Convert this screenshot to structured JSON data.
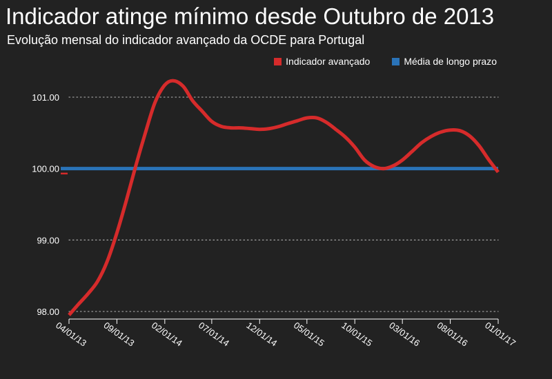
{
  "header": {
    "title": "Indicador atinge mínimo desde Outubro de 2013",
    "subtitle": "Evolução mensal do indicador avançado da OCDE para Portugal"
  },
  "colors": {
    "background": "#222222",
    "indicator": "#d62b2b",
    "average": "#2a73b8",
    "grid": "#9a9a9a",
    "text": "#ffffff"
  },
  "chart_data": {
    "type": "line",
    "title": "Indicador atinge mínimo desde Outubro de 2013",
    "subtitle": "Evolução mensal do indicador avançado da OCDE para Portugal",
    "xlabel": "",
    "ylabel": "",
    "ylim": [
      98.0,
      101.3
    ],
    "yticks": [
      98.0,
      99.0,
      100.0,
      101.0
    ],
    "ytick_labels": [
      "98.00",
      "99.00",
      "100.00",
      "101.00"
    ],
    "xlim": [
      "2013-04-01",
      "2017-01-01"
    ],
    "xticks": [
      "2013-04-01",
      "2013-09-01",
      "2014-02-01",
      "2014-07-01",
      "2014-12-01",
      "2015-05-01",
      "2015-10-01",
      "2016-03-01",
      "2016-08-01",
      "2017-01-01"
    ],
    "xtick_labels": [
      "04/01/13",
      "09/01/13",
      "02/01/14",
      "07/01/14",
      "12/01/14",
      "05/01/15",
      "10/01/15",
      "03/01/16",
      "08/01/16",
      "01/01/17"
    ],
    "grid": "horizontal-dotted",
    "legend_position": "top-right",
    "series": [
      {
        "name": "Indicador avançado",
        "color": "#d62b2b",
        "x": [
          "2013-04-01",
          "2013-05-01",
          "2013-06-01",
          "2013-07-01",
          "2013-08-01",
          "2013-09-01",
          "2013-10-01",
          "2013-11-01",
          "2013-12-01",
          "2014-01-01",
          "2014-02-01",
          "2014-03-01",
          "2014-04-01",
          "2014-05-01",
          "2014-06-01",
          "2014-07-01",
          "2014-08-01",
          "2014-09-01",
          "2014-10-01",
          "2014-11-01",
          "2014-12-01",
          "2015-01-01",
          "2015-02-01",
          "2015-03-01",
          "2015-04-01",
          "2015-05-01",
          "2015-06-01",
          "2015-07-01",
          "2015-08-01",
          "2015-09-01",
          "2015-10-01",
          "2015-11-01",
          "2015-12-01",
          "2016-01-01",
          "2016-02-01",
          "2016-03-01",
          "2016-04-01",
          "2016-05-01",
          "2016-06-01",
          "2016-07-01",
          "2016-08-01",
          "2016-09-01",
          "2016-10-01",
          "2016-11-01",
          "2016-12-01",
          "2017-01-01"
        ],
        "values": [
          97.95,
          98.1,
          98.25,
          98.42,
          98.7,
          99.1,
          99.55,
          100.05,
          100.5,
          100.93,
          101.17,
          101.23,
          101.15,
          100.95,
          100.8,
          100.66,
          100.59,
          100.57,
          100.57,
          100.56,
          100.55,
          100.56,
          100.59,
          100.63,
          100.67,
          100.71,
          100.71,
          100.65,
          100.55,
          100.44,
          100.3,
          100.12,
          100.03,
          100.0,
          100.04,
          100.12,
          100.24,
          100.36,
          100.45,
          100.51,
          100.54,
          100.53,
          100.46,
          100.32,
          100.13,
          99.95
        ]
      },
      {
        "name": "Média de longo prazo",
        "color": "#2a73b8",
        "x": [
          "2013-04-01",
          "2017-01-01"
        ],
        "values": [
          100.0,
          100.0
        ]
      }
    ]
  }
}
